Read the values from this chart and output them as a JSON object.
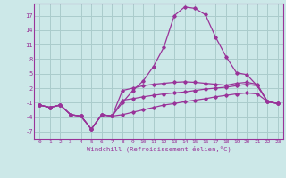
{
  "background_color": "#cce8e8",
  "grid_color": "#aacccc",
  "line_color": "#993399",
  "xlabel": "Windchill (Refroidissement éolien,°C)",
  "yticks": [
    -7,
    -4,
    -1,
    2,
    5,
    8,
    11,
    14,
    17
  ],
  "xticks": [
    0,
    1,
    2,
    3,
    4,
    5,
    6,
    7,
    8,
    9,
    10,
    11,
    12,
    13,
    14,
    15,
    16,
    17,
    18,
    19,
    20,
    21,
    22,
    23
  ],
  "xlim": [
    -0.5,
    23.5
  ],
  "ylim": [
    -8.5,
    19.5
  ],
  "x": [
    0,
    1,
    2,
    3,
    4,
    5,
    6,
    7,
    8,
    9,
    10,
    11,
    12,
    13,
    14,
    15,
    16,
    17,
    18,
    19,
    20,
    21,
    22,
    23
  ],
  "series1": [
    -1.5,
    -2.0,
    -1.5,
    -3.5,
    -3.8,
    -6.5,
    -3.5,
    -3.8,
    -1.0,
    1.5,
    3.5,
    6.5,
    10.5,
    17.0,
    18.8,
    18.5,
    17.2,
    12.5,
    8.5,
    5.2,
    4.8,
    2.5,
    -0.8,
    -1.2
  ],
  "series2": [
    -1.5,
    -2.0,
    -1.5,
    -3.5,
    -3.8,
    -6.5,
    -3.5,
    -3.8,
    1.5,
    2.0,
    2.5,
    2.8,
    3.0,
    3.2,
    3.3,
    3.2,
    3.0,
    2.8,
    2.6,
    3.0,
    3.2,
    2.8,
    -0.8,
    -1.2
  ],
  "series3": [
    -1.5,
    -2.0,
    -1.5,
    -3.5,
    -3.8,
    -6.5,
    -3.5,
    -3.8,
    -0.5,
    -0.2,
    0.2,
    0.5,
    0.8,
    1.0,
    1.2,
    1.5,
    1.8,
    2.0,
    2.2,
    2.5,
    2.8,
    2.5,
    -0.8,
    -1.2
  ],
  "series4": [
    -1.5,
    -2.0,
    -1.5,
    -3.5,
    -3.8,
    -6.5,
    -3.5,
    -3.8,
    -3.5,
    -3.0,
    -2.5,
    -2.0,
    -1.5,
    -1.2,
    -0.8,
    -0.5,
    -0.2,
    0.2,
    0.5,
    0.8,
    1.0,
    0.8,
    -0.8,
    -1.2
  ]
}
